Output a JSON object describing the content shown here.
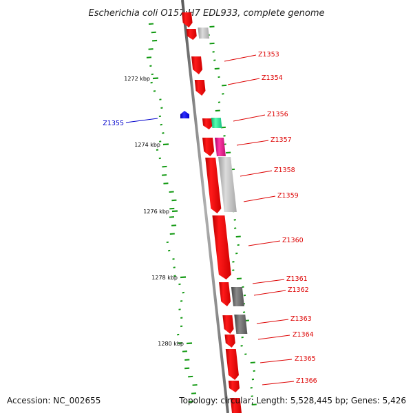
{
  "title": "Escherichia coli O157:H7 EDL933, complete genome",
  "footer": {
    "accession": "Accession: NC_002655",
    "topology": "Topology: circular; Length: 5,528,445 bp; Genes: 5,426"
  },
  "colors": {
    "forward_gene": "#ff0000",
    "reverse_gene": "#0000ff",
    "other_gene_light": "#c0c0c0",
    "other_gene_dark": "#6e6e6e",
    "green_gene": "#22dd88",
    "magenta_gene": "#dd1188",
    "backbone": "#808080",
    "gc_marks": "#119911"
  },
  "kbp_ticks": [
    {
      "label": "1272 kbp"
    },
    {
      "label": "1274 kbp"
    },
    {
      "label": "1276 kbp"
    },
    {
      "label": "1278 kbp"
    },
    {
      "label": "1280 kbp"
    }
  ],
  "gene_labels": [
    {
      "text": "Z1353",
      "color": "#dd0000"
    },
    {
      "text": "Z1354",
      "color": "#dd0000"
    },
    {
      "text": "Z1355",
      "color": "#0000cc"
    },
    {
      "text": "Z1356",
      "color": "#dd0000"
    },
    {
      "text": "Z1357",
      "color": "#dd0000"
    },
    {
      "text": "Z1358",
      "color": "#dd0000"
    },
    {
      "text": "Z1359",
      "color": "#dd0000"
    },
    {
      "text": "Z1360",
      "color": "#dd0000"
    },
    {
      "text": "Z1361",
      "color": "#dd0000"
    },
    {
      "text": "Z1362",
      "color": "#dd0000"
    },
    {
      "text": "Z1363",
      "color": "#dd0000"
    },
    {
      "text": "Z1364",
      "color": "#dd0000"
    },
    {
      "text": "Z1365",
      "color": "#dd0000"
    },
    {
      "text": "Z1366",
      "color": "#dd0000"
    }
  ]
}
